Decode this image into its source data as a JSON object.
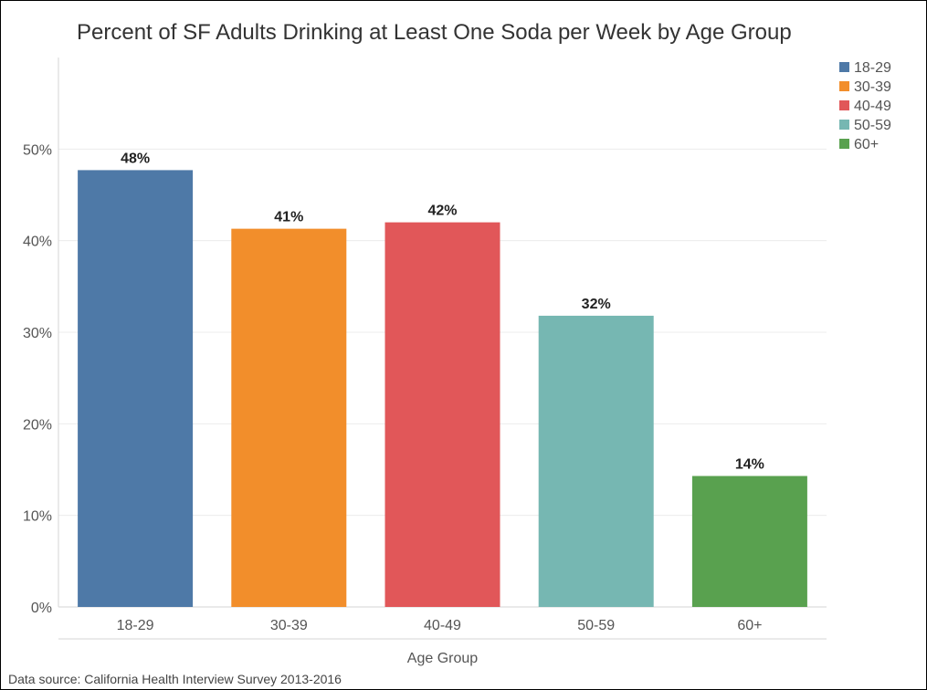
{
  "chart_data": {
    "type": "bar",
    "title": "Percent of SF Adults Drinking at Least One Soda per Week by Age Group",
    "xlabel": "Age Group",
    "ylabel": "",
    "categories": [
      "18-29",
      "30-39",
      "40-49",
      "50-59",
      "60+"
    ],
    "values": [
      47.7,
      41.3,
      42.0,
      31.8,
      14.3
    ],
    "data_labels": [
      "48%",
      "41%",
      "42%",
      "32%",
      "14%"
    ],
    "colors": [
      "#4e79a7",
      "#f28e2b",
      "#e15759",
      "#76b7b2",
      "#59a14f"
    ],
    "ylim": [
      0,
      60
    ],
    "yticks": [
      0,
      10,
      20,
      30,
      40,
      50
    ],
    "ytick_labels": [
      "0%",
      "10%",
      "20%",
      "30%",
      "40%",
      "50%"
    ],
    "grid": true,
    "legend": {
      "placement": "top-right",
      "entries": [
        "18-29",
        "30-39",
        "40-49",
        "50-59",
        "60+"
      ]
    }
  },
  "footer": {
    "source": "Data source: California Health Interview Survey 2013-2016"
  }
}
